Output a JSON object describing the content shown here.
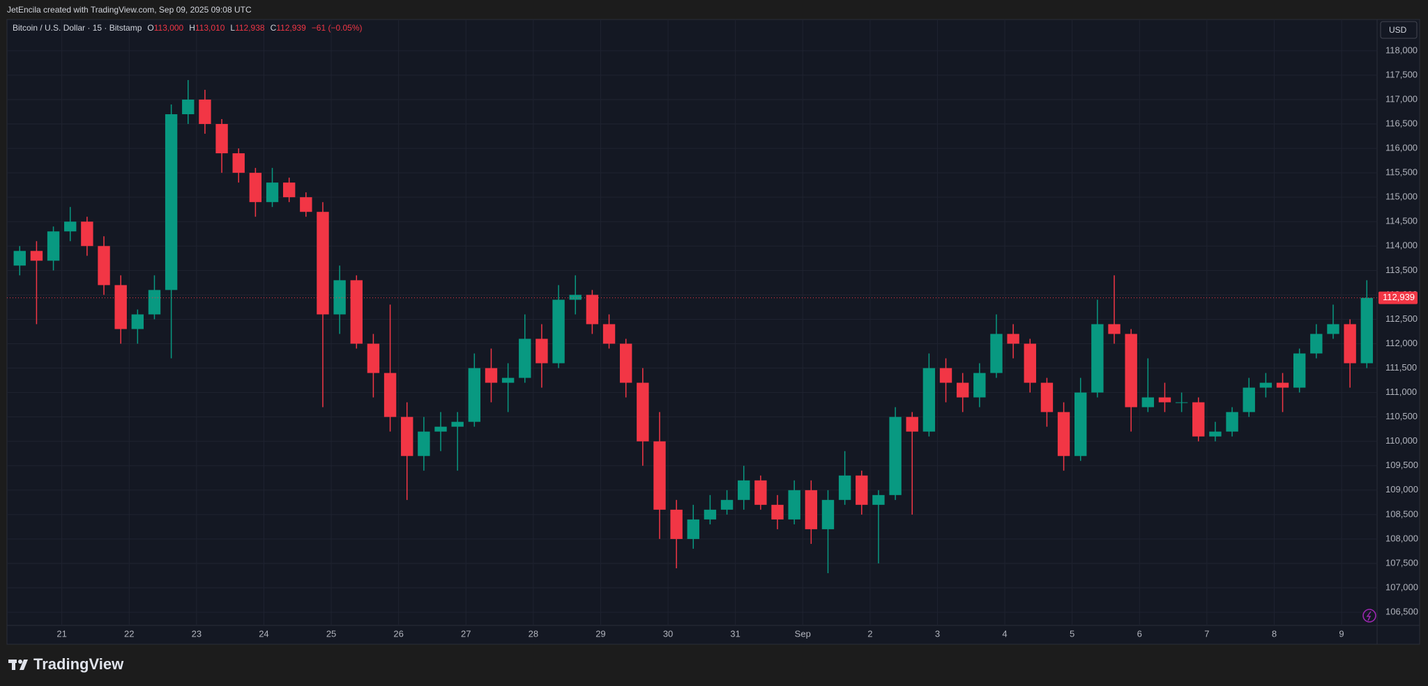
{
  "header": {
    "credit": "JetEncila created with TradingView.com, Sep 09, 2025 09:08 UTC"
  },
  "chart_data": {
    "type": "candlestick",
    "title": "Bitcoin / U.S. Dollar · 15 · Bitstamp",
    "ohlc": [
      {
        "key": "O",
        "value": "113,000"
      },
      {
        "key": "H",
        "value": "113,010"
      },
      {
        "key": "L",
        "value": "112,938"
      },
      {
        "key": "C",
        "value": "112,939"
      }
    ],
    "change": "−61 (−0.05%)",
    "currency": "USD",
    "up_color": "#089981",
    "down_color": "#f23645",
    "grid": true,
    "last_price": {
      "value": 112939,
      "label": "112,939"
    },
    "categories": [
      null,
      null,
      null,
      "21",
      null,
      null,
      null,
      "22",
      null,
      null,
      null,
      "23",
      null,
      null,
      null,
      "24",
      null,
      null,
      null,
      "25",
      null,
      null,
      null,
      "26",
      null,
      null,
      null,
      "27",
      null,
      null,
      null,
      "28",
      null,
      null,
      null,
      "29",
      null,
      null,
      null,
      "30",
      null,
      null,
      null,
      "31",
      null,
      null,
      null,
      "Sep",
      null,
      null,
      null,
      "2",
      null,
      null,
      null,
      "3",
      null,
      null,
      null,
      "4",
      null,
      null,
      null,
      "5",
      null,
      null,
      null,
      "6",
      null,
      null,
      null,
      "7",
      null,
      null,
      null,
      "8",
      null,
      null,
      null,
      "9",
      null
    ],
    "open": [
      113600,
      113900,
      113700,
      114300,
      114500,
      114000,
      113200,
      112300,
      112600,
      113100,
      116700,
      117000,
      116500,
      115900,
      115500,
      114900,
      115300,
      115000,
      114700,
      112600,
      113300,
      112000,
      111400,
      110500,
      109700,
      110200,
      110300,
      110400,
      111500,
      111200,
      111300,
      112100,
      111600,
      112900,
      113000,
      112400,
      112000,
      111200,
      110000,
      108600,
      108000,
      108400,
      108600,
      108800,
      109200,
      108700,
      108400,
      109000,
      108200,
      108800,
      109300,
      108700,
      108900,
      110500,
      110200,
      111500,
      111200,
      110900,
      111400,
      112200,
      112000,
      111200,
      110600,
      109700,
      111000,
      112400,
      112200,
      110700,
      110900,
      110800,
      110800,
      110100,
      110200,
      110600,
      111100,
      111200,
      111100,
      111800,
      112200,
      112400,
      111600
    ],
    "high": [
      114000,
      114100,
      114400,
      114800,
      114600,
      114200,
      113400,
      112700,
      113400,
      116900,
      117400,
      117200,
      116600,
      116000,
      115600,
      115600,
      115400,
      115100,
      114900,
      113600,
      113400,
      112200,
      112800,
      110800,
      110500,
      110600,
      110600,
      111800,
      111900,
      111600,
      112600,
      112400,
      113200,
      113400,
      113100,
      112600,
      112100,
      111500,
      110600,
      108800,
      108700,
      108900,
      109000,
      109500,
      109300,
      108900,
      109200,
      109200,
      109000,
      109800,
      109400,
      109000,
      110700,
      110600,
      111800,
      111700,
      111400,
      111600,
      112600,
      112400,
      112100,
      111300,
      110800,
      111300,
      112900,
      113400,
      112300,
      111700,
      111200,
      111000,
      110900,
      110400,
      110700,
      111300,
      111400,
      111400,
      111900,
      112400,
      112800,
      112500,
      113300
    ],
    "low": [
      113400,
      112400,
      113500,
      114100,
      113800,
      113000,
      112000,
      112000,
      112500,
      111700,
      116500,
      116300,
      115500,
      115300,
      114600,
      114800,
      114900,
      114600,
      110700,
      112200,
      111900,
      110900,
      110200,
      108800,
      109400,
      109800,
      109400,
      110300,
      110800,
      110600,
      111200,
      111100,
      111500,
      112600,
      112200,
      111900,
      110900,
      109500,
      108000,
      107400,
      107800,
      108300,
      108500,
      108600,
      108600,
      108200,
      108300,
      107900,
      107300,
      108700,
      108500,
      107500,
      108800,
      108500,
      110100,
      110800,
      110600,
      110700,
      111300,
      111700,
      111000,
      110300,
      109400,
      109600,
      110900,
      112000,
      110200,
      110600,
      110600,
      110600,
      110000,
      110000,
      110100,
      110500,
      110900,
      110600,
      111000,
      111700,
      112100,
      111100,
      111500
    ],
    "close": [
      113900,
      113700,
      114300,
      114500,
      114000,
      113200,
      112300,
      112600,
      113100,
      116700,
      117000,
      116500,
      115900,
      115500,
      114900,
      115300,
      115000,
      114700,
      112600,
      113300,
      112000,
      111400,
      110500,
      109700,
      110200,
      110300,
      110400,
      111500,
      111200,
      111300,
      112100,
      111600,
      112900,
      113000,
      112400,
      112000,
      111200,
      110000,
      108600,
      108000,
      108400,
      108600,
      108800,
      109200,
      108700,
      108400,
      109000,
      108200,
      108800,
      109300,
      108700,
      108900,
      110500,
      110200,
      111500,
      111200,
      110900,
      111400,
      112200,
      112000,
      111200,
      110600,
      109700,
      111000,
      112400,
      112200,
      110700,
      110900,
      110800,
      110800,
      110100,
      110200,
      110600,
      111100,
      111200,
      111100,
      111800,
      112200,
      112400,
      111600,
      112939
    ],
    "ylim": [
      106230,
      118640
    ],
    "yticks": [
      {
        "value": 106500,
        "label": "106,500"
      },
      {
        "value": 107000,
        "label": "107,000"
      },
      {
        "value": 107500,
        "label": "107,500"
      },
      {
        "value": 108000,
        "label": "108,000"
      },
      {
        "value": 108500,
        "label": "108,500"
      },
      {
        "value": 109000,
        "label": "109,000"
      },
      {
        "value": 109500,
        "label": "109,500"
      },
      {
        "value": 110000,
        "label": "110,000"
      },
      {
        "value": 110500,
        "label": "110,500"
      },
      {
        "value": 111000,
        "label": "111,000"
      },
      {
        "value": 111500,
        "label": "111,500"
      },
      {
        "value": 112000,
        "label": "112,000"
      },
      {
        "value": 112500,
        "label": "112,500"
      },
      {
        "value": 113000,
        "label": "113,000"
      },
      {
        "value": 113500,
        "label": "113,500"
      },
      {
        "value": 114000,
        "label": "114,000"
      },
      {
        "value": 114500,
        "label": "114,500"
      },
      {
        "value": 115000,
        "label": "115,000"
      },
      {
        "value": 115500,
        "label": "115,500"
      },
      {
        "value": 116000,
        "label": "116,000"
      },
      {
        "value": 116500,
        "label": "116,500"
      },
      {
        "value": 117000,
        "label": "117,000"
      },
      {
        "value": 117500,
        "label": "117,500"
      },
      {
        "value": 118000,
        "label": "118,000"
      }
    ]
  },
  "footer": {
    "brand": "TradingView"
  }
}
